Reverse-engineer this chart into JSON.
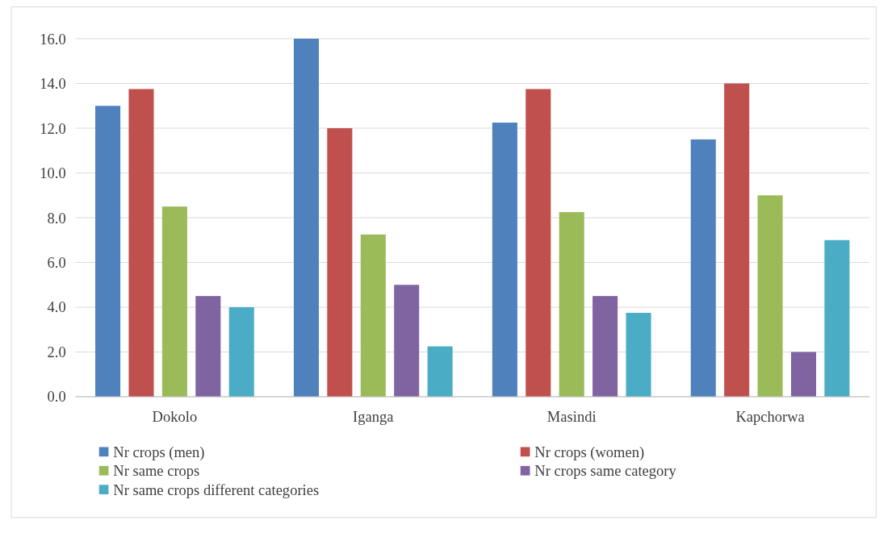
{
  "chart_data": {
    "type": "bar",
    "categories": [
      "Dokolo",
      "Iganga",
      "Masindi",
      "Kapchorwa"
    ],
    "series": [
      {
        "name": "Nr crops (men)",
        "color": "#4f81bd",
        "values": [
          13,
          16,
          12.25,
          11.5
        ]
      },
      {
        "name": "Nr crops (women)",
        "color": "#c0504d",
        "values": [
          13.75,
          12,
          13.75,
          14
        ]
      },
      {
        "name": "Nr same crops",
        "color": "#9bbb59",
        "values": [
          8.5,
          7.25,
          8.25,
          9
        ]
      },
      {
        "name": "Nr crops same category",
        "color": "#8064a2",
        "values": [
          4.5,
          5,
          4.5,
          2
        ]
      },
      {
        "name": "Nr same crops different categories",
        "color": "#4bacc6",
        "values": [
          4,
          2.25,
          3.75,
          7
        ]
      }
    ],
    "ylim": [
      0,
      16
    ],
    "yticks": [
      {
        "value": 0,
        "label": "0.0"
      },
      {
        "value": 2,
        "label": "2.0"
      },
      {
        "value": 4,
        "label": "4.0"
      },
      {
        "value": 6,
        "label": "6.0"
      },
      {
        "value": 8,
        "label": "8.0"
      },
      {
        "value": 10,
        "label": "10.0"
      },
      {
        "value": 12,
        "label": "12.0"
      },
      {
        "value": 14,
        "label": "14.0"
      },
      {
        "value": 16,
        "label": "16.0"
      }
    ],
    "grid": "y",
    "legend": "bottom"
  }
}
